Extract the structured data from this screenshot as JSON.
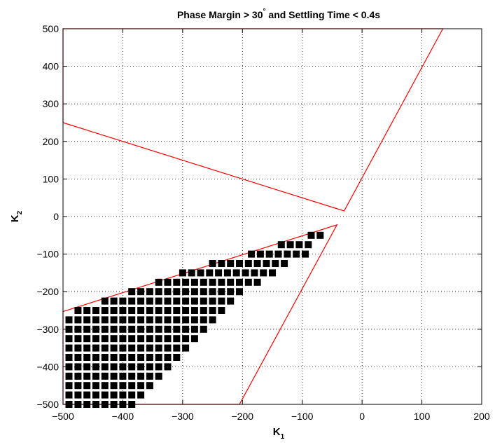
{
  "chart_data": {
    "type": "scatter",
    "title": {
      "pre": "Phase Margin > 30",
      "sup": "°",
      "post": " and Settling Time < 0.4s"
    },
    "xlabel": {
      "main": "K",
      "sub": "1"
    },
    "ylabel": {
      "main": "K",
      "sub": "2"
    },
    "xlim": [
      -500,
      200
    ],
    "ylim": [
      -500,
      500
    ],
    "xticks": [
      -500,
      -400,
      -300,
      -200,
      -100,
      0,
      100,
      200
    ],
    "yticks": [
      -500,
      -400,
      -300,
      -200,
      -100,
      0,
      100,
      200,
      300,
      400,
      500
    ],
    "xtick_labels": [
      "−500",
      "−400",
      "−300",
      "−200",
      "−100",
      "0",
      "100",
      "200"
    ],
    "ytick_labels": [
      "−500",
      "−400",
      "−300",
      "−200",
      "−100",
      "0",
      "100",
      "200",
      "300",
      "400",
      "500"
    ],
    "grid": true,
    "colors": {
      "boundary": "#ff0000",
      "marker": "#000000",
      "grid": "#000000"
    },
    "boundaries": [
      {
        "name": "upper-region",
        "x": [
          -500,
          -500,
          135,
          -30,
          -500
        ],
        "y": [
          250,
          500,
          500,
          15,
          250
        ]
      },
      {
        "name": "lower-region",
        "x": [
          -500,
          -42,
          -205,
          -500,
          -500
        ],
        "y": [
          -253,
          -22,
          -500,
          -500,
          -253
        ]
      }
    ],
    "series": [
      {
        "marker": "square",
        "rows": [
          {
            "y": -50,
            "x": [
              -85,
              -70
            ]
          },
          {
            "y": -75,
            "x": [
              -135,
              -120,
              -105,
              -90
            ]
          },
          {
            "y": -100,
            "x": [
              -185,
              -170,
              -155,
              -140,
              -125,
              -110,
              -95
            ]
          },
          {
            "y": -125,
            "x": [
              -250,
              -235,
              -220,
              -205,
              -190,
              -175,
              -160,
              -145,
              -130
            ]
          },
          {
            "y": -150,
            "x": [
              -300,
              -285,
              -270,
              -255,
              -240,
              -225,
              -210,
              -195,
              -180,
              -165,
              -150
            ]
          },
          {
            "y": -175,
            "x": [
              -340,
              -325,
              -310,
              -295,
              -280,
              -265,
              -250,
              -235,
              -220,
              -205,
              -190,
              -175
            ]
          },
          {
            "y": -200,
            "x": [
              -385,
              -370,
              -355,
              -340,
              -325,
              -310,
              -295,
              -280,
              -265,
              -250,
              -235,
              -220,
              -205
            ]
          },
          {
            "y": -225,
            "x": [
              -430,
              -415,
              -400,
              -385,
              -370,
              -355,
              -340,
              -325,
              -310,
              -295,
              -280,
              -265,
              -250,
              -235,
              -220
            ]
          },
          {
            "y": -250,
            "x": [
              -475,
              -460,
              -445,
              -430,
              -415,
              -400,
              -385,
              -370,
              -355,
              -340,
              -325,
              -310,
              -295,
              -280,
              -265,
              -250,
              -235
            ]
          },
          {
            "y": -275,
            "x": [
              -490,
              -475,
              -460,
              -445,
              -430,
              -415,
              -400,
              -385,
              -370,
              -355,
              -340,
              -325,
              -310,
              -295,
              -280,
              -265,
              -250
            ]
          },
          {
            "y": -300,
            "x": [
              -490,
              -475,
              -460,
              -445,
              -430,
              -415,
              -400,
              -385,
              -370,
              -355,
              -340,
              -325,
              -310,
              -295,
              -280,
              -265
            ]
          },
          {
            "y": -325,
            "x": [
              -490,
              -475,
              -460,
              -445,
              -430,
              -415,
              -400,
              -385,
              -370,
              -355,
              -340,
              -325,
              -310,
              -295,
              -280
            ]
          },
          {
            "y": -350,
            "x": [
              -490,
              -475,
              -460,
              -445,
              -430,
              -415,
              -400,
              -385,
              -370,
              -355,
              -340,
              -325,
              -310,
              -295
            ]
          },
          {
            "y": -375,
            "x": [
              -490,
              -475,
              -460,
              -445,
              -430,
              -415,
              -400,
              -385,
              -370,
              -355,
              -340,
              -325,
              -310
            ]
          },
          {
            "y": -400,
            "x": [
              -490,
              -475,
              -460,
              -445,
              -430,
              -415,
              -400,
              -385,
              -370,
              -355,
              -340,
              -325
            ]
          },
          {
            "y": -425,
            "x": [
              -490,
              -475,
              -460,
              -445,
              -430,
              -415,
              -400,
              -385,
              -370,
              -355,
              -340
            ]
          },
          {
            "y": -450,
            "x": [
              -490,
              -475,
              -460,
              -445,
              -430,
              -415,
              -400,
              -385,
              -370,
              -355
            ]
          },
          {
            "y": -475,
            "x": [
              -490,
              -475,
              -460,
              -445,
              -430,
              -415,
              -400,
              -385,
              -370
            ]
          },
          {
            "y": -500,
            "x": [
              -490,
              -475,
              -460,
              -445,
              -430,
              -415,
              -400,
              -385
            ]
          }
        ]
      }
    ]
  }
}
